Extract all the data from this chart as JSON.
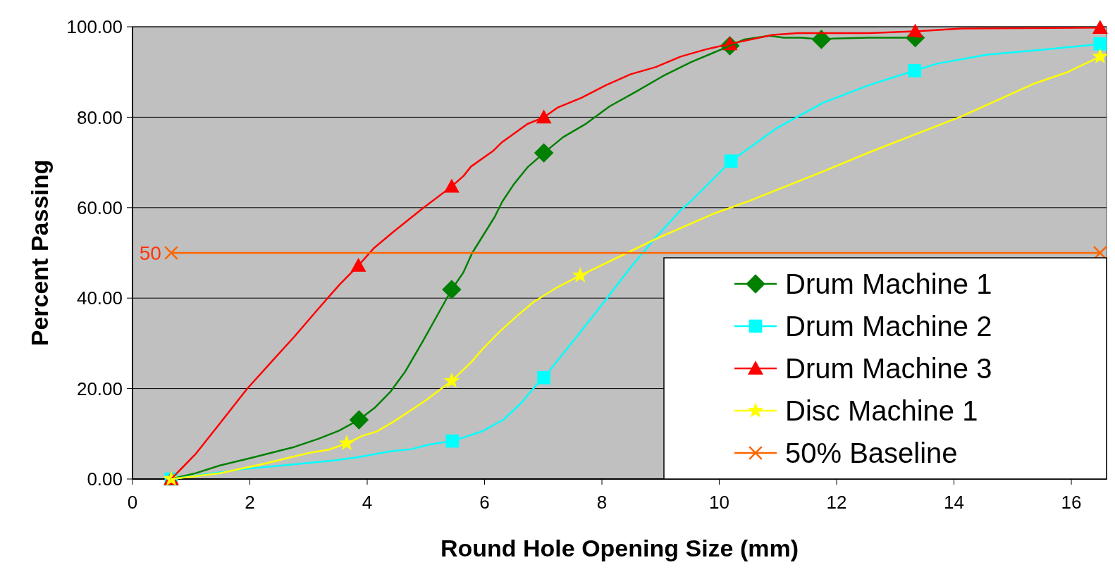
{
  "chart_data": {
    "type": "line",
    "xlabel": "Round Hole Opening Size (mm)",
    "ylabel": "Percent Passing",
    "xlim": [
      0,
      16.6
    ],
    "xticks": [
      0,
      2,
      4,
      6,
      8,
      10,
      12,
      14,
      16
    ],
    "ylim": [
      0,
      100
    ],
    "yticks": [
      {
        "value": 0,
        "label": "0.00"
      },
      {
        "value": 20,
        "label": "20.00"
      },
      {
        "value": 40,
        "label": "40.00"
      },
      {
        "value": 60,
        "label": "60.00"
      },
      {
        "value": 80,
        "label": "80.00"
      },
      {
        "value": 100,
        "label": "100.00"
      }
    ],
    "grid": "y",
    "legend": "bottom right",
    "line_style": "solid",
    "annotations": [
      {
        "text": "50",
        "x": 0.66,
        "y": 50
      }
    ],
    "series": [
      {
        "name": "Drum Machine 1",
        "marker": "none",
        "color": "#008000",
        "x": [
          0.66,
          1.08,
          1.49,
          2.0,
          2.76,
          3.17,
          3.52,
          3.86,
          4.14,
          4.39,
          4.65,
          4.95,
          5.44,
          5.64,
          5.79,
          6.17,
          6.3,
          6.5,
          6.73,
          7.01,
          7.34,
          7.71,
          8.13,
          8.56,
          9.04,
          9.52,
          9.89,
          10.18,
          10.43,
          10.85,
          11.1,
          11.4,
          11.74,
          11.95,
          12.55,
          13.34
        ],
        "values": [
          0,
          1.3,
          3.0,
          4.6,
          7.1,
          8.9,
          10.7,
          13.1,
          15.9,
          19.2,
          23.8,
          30.5,
          41.9,
          45.7,
          50.0,
          57.9,
          61.3,
          65.2,
          68.9,
          72.1,
          75.6,
          78.4,
          82.4,
          85.5,
          89.1,
          92.2,
          94.2,
          95.8,
          97.2,
          98.0,
          97.6,
          97.6,
          97.2,
          97.4,
          97.6,
          97.6
        ]
      },
      {
        "type": "scatter",
        "marker": "diamond",
        "color": "#008000",
        "x": [
          3.86,
          5.44,
          7.01,
          10.18,
          11.74,
          13.34
        ],
        "values": [
          13.1,
          41.9,
          72.1,
          95.8,
          97.2,
          97.6
        ]
      },
      {
        "name": "Drum Machine 2",
        "marker": "none",
        "color": "#00ffff",
        "x": [
          0.66,
          1.49,
          1.9,
          2.71,
          3.42,
          3.83,
          4.39,
          4.75,
          5.05,
          5.45,
          5.97,
          6.33,
          6.63,
          6.89,
          7.01,
          7.59,
          8.07,
          8.49,
          8.92,
          9.34,
          9.58,
          10.2,
          10.98,
          11.77,
          12.55,
          13.33,
          13.7,
          14.55,
          15.58,
          16.49
        ],
        "values": [
          0,
          1.5,
          2.2,
          3.2,
          4.1,
          4.8,
          6.1,
          6.6,
          7.6,
          8.4,
          10.6,
          13.2,
          16.9,
          20.9,
          22.4,
          31.8,
          39.7,
          46.8,
          53.5,
          59.4,
          62.2,
          70.3,
          77.6,
          83.2,
          87.1,
          90.3,
          91.8,
          93.8,
          95.0,
          96.2
        ]
      },
      {
        "type": "scatter",
        "marker": "square",
        "color": "#00ffff",
        "x": [
          0.66,
          5.45,
          7.01,
          10.2,
          13.33,
          16.49
        ],
        "values": [
          0,
          8.4,
          22.4,
          70.3,
          90.3,
          96.2
        ]
      },
      {
        "name": "Drum Machine 3",
        "marker": "none",
        "color": "#ff0000",
        "x": [
          0.66,
          1.08,
          1.49,
          1.95,
          2.36,
          2.76,
          3.17,
          3.53,
          3.85,
          4.11,
          4.44,
          4.95,
          5.44,
          5.64,
          5.77,
          6.15,
          6.3,
          6.73,
          7.01,
          7.24,
          7.65,
          8.07,
          8.49,
          8.92,
          9.34,
          9.77,
          10.18,
          10.91,
          11.34,
          12.55,
          13.34,
          14.13,
          16.49
        ],
        "values": [
          0,
          5.6,
          12.3,
          19.9,
          25.8,
          31.5,
          37.7,
          43.0,
          47.2,
          51.0,
          54.6,
          59.9,
          64.7,
          67.0,
          69.1,
          72.6,
          74.5,
          78.5,
          80.0,
          82.1,
          84.3,
          87.1,
          89.5,
          91.1,
          93.4,
          95.0,
          96.2,
          98.2,
          98.6,
          98.6,
          99.0,
          99.6,
          99.8
        ]
      },
      {
        "type": "scatter",
        "marker": "triangle",
        "color": "#ff0000",
        "x": [
          0.66,
          3.85,
          5.44,
          7.01,
          10.18,
          13.34,
          16.49
        ],
        "values": [
          0,
          47.2,
          64.7,
          80.0,
          96.2,
          99.0,
          99.8
        ]
      },
      {
        "name": "Disc Machine 1",
        "marker": "none",
        "color": "#ffff00",
        "x": [
          0.66,
          1.49,
          2.25,
          2.69,
          3.02,
          3.35,
          3.65,
          3.93,
          4.16,
          4.44,
          5.0,
          5.44,
          5.77,
          5.97,
          6.25,
          6.53,
          6.83,
          7.24,
          7.63,
          8.43,
          8.92,
          9.89,
          10.49,
          11.71,
          12.55,
          14.13,
          15.34,
          15.94,
          16.49
        ],
        "values": [
          0,
          1.3,
          3.4,
          4.8,
          5.8,
          6.5,
          7.9,
          9.6,
          10.5,
          12.6,
          17.4,
          21.7,
          25.8,
          28.8,
          32.5,
          35.8,
          39.1,
          42.4,
          45.0,
          50.0,
          53.1,
          58.6,
          61.4,
          67.7,
          72.2,
          80.2,
          87.3,
          90.0,
          93.4
        ]
      },
      {
        "type": "scatter",
        "marker": "star",
        "color": "#ffff00",
        "x": [
          0.66,
          3.65,
          5.44,
          7.63,
          16.49
        ],
        "values": [
          0,
          7.9,
          21.7,
          45.0,
          93.4
        ]
      },
      {
        "name": "50% Baseline",
        "marker": "cross",
        "color": "#ff6600",
        "x": [
          0.66,
          16.49
        ],
        "values": [
          50,
          50
        ]
      }
    ]
  }
}
